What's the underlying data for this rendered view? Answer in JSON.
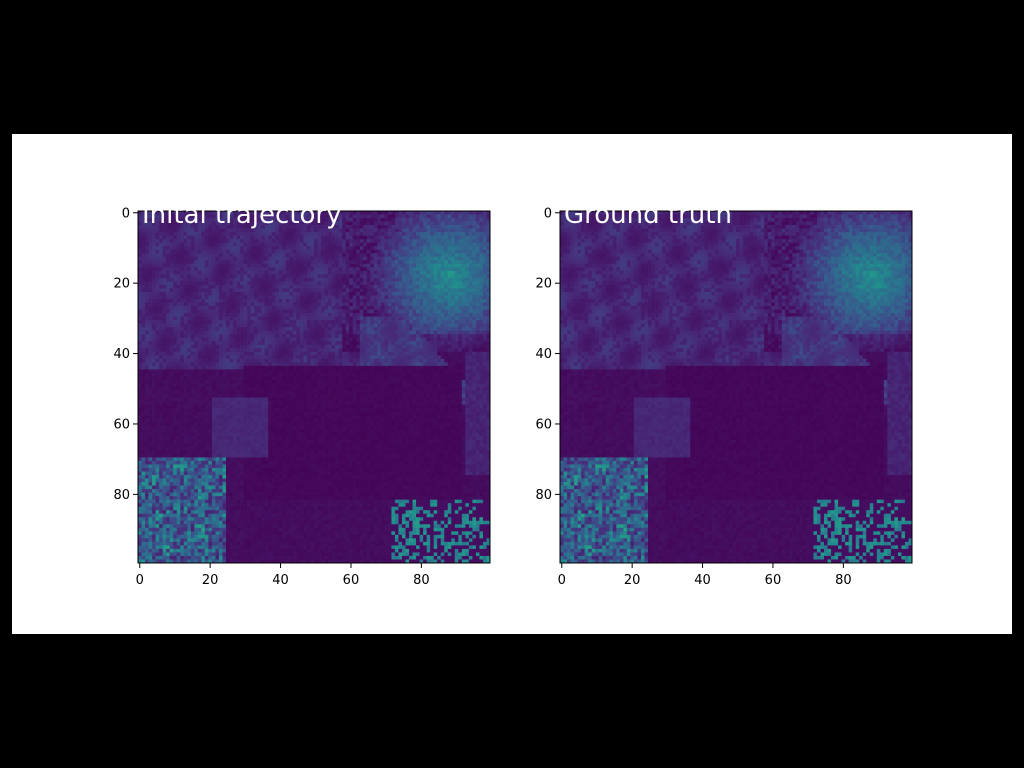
{
  "colors": {
    "background": "#000000",
    "figure": "#ffffff",
    "colormap": "viridis",
    "title_text": "#ffffff"
  },
  "chart_data": [
    {
      "type": "heatmap",
      "title": "Inital trajectory",
      "xlabel": "",
      "ylabel": "",
      "xlim": [
        0,
        99
      ],
      "ylim": [
        99,
        0
      ],
      "xticks": [
        "0",
        "20",
        "40",
        "60",
        "80"
      ],
      "yticks": [
        "0",
        "20",
        "40",
        "60",
        "80"
      ],
      "grid": false,
      "colormap": "viridis",
      "size": [
        100,
        100
      ],
      "regions": [
        {
          "name": "upper-right bright band",
          "center": [
            85,
            20
          ],
          "level": 0.45
        },
        {
          "name": "lower-left speckle",
          "center": [
            12,
            88
          ],
          "level": 0.35
        },
        {
          "name": "lower-right speckle",
          "center": [
            88,
            92
          ],
          "level": 0.3
        },
        {
          "name": "central calm",
          "center": [
            50,
            65
          ],
          "level": 0.0
        },
        {
          "name": "rectangular patch",
          "center": [
            28,
            61
          ],
          "level": 0.12
        }
      ]
    },
    {
      "type": "heatmap",
      "title": "Ground truth",
      "xlabel": "",
      "ylabel": "",
      "xlim": [
        0,
        99
      ],
      "ylim": [
        99,
        0
      ],
      "xticks": [
        "0",
        "20",
        "40",
        "60",
        "80"
      ],
      "yticks": [
        "0",
        "20",
        "40",
        "60",
        "80"
      ],
      "grid": false,
      "colormap": "viridis",
      "size": [
        100,
        100
      ],
      "regions": [
        {
          "name": "upper-right bright band",
          "center": [
            85,
            20
          ],
          "level": 0.45
        },
        {
          "name": "lower-left speckle",
          "center": [
            12,
            88
          ],
          "level": 0.35
        },
        {
          "name": "lower-right speckle",
          "center": [
            88,
            92
          ],
          "level": 0.3
        },
        {
          "name": "central calm",
          "center": [
            50,
            65
          ],
          "level": 0.0
        },
        {
          "name": "rectangular patch",
          "center": [
            28,
            61
          ],
          "level": 0.12
        }
      ]
    }
  ]
}
